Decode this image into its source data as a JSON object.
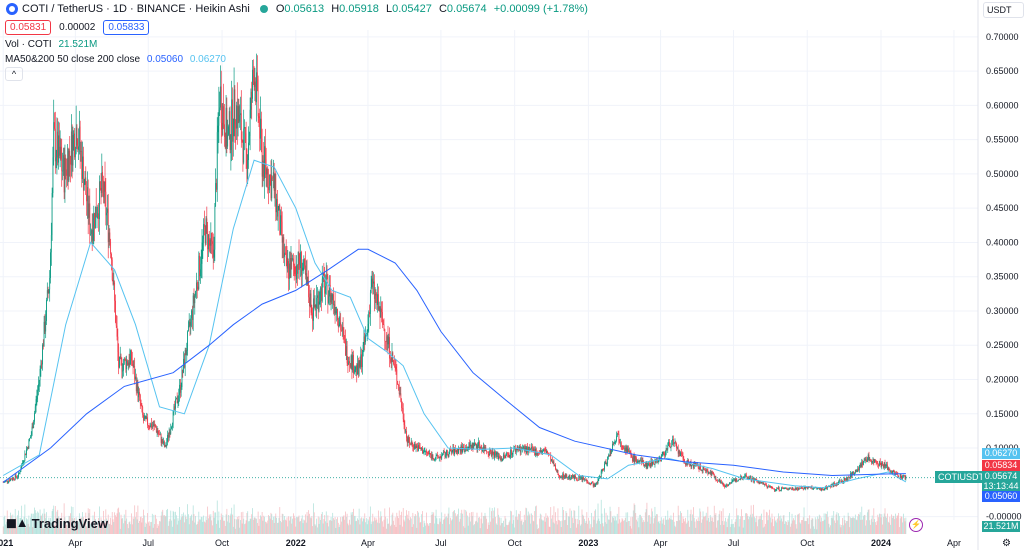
{
  "header": {
    "title": "COTI / TetherUS · 1D · BINANCE · Heikin Ashi",
    "o_key": "O",
    "o": "0.05613",
    "h_key": "H",
    "h": "0.05918",
    "l_key": "L",
    "l": "0.05427",
    "c_key": "C",
    "c": "0.05674",
    "change": "+0.00099 (+1.78%)",
    "sell": "0.05831",
    "spread": "0.00002",
    "buy": "0.05833",
    "currency": "USDT"
  },
  "indicators": {
    "vol_label": "Vol · COTI",
    "vol_value": "21.521M",
    "ma_label": "MA50&200 50 close 200 close",
    "ma50_value": "0.05060",
    "ma200_value": "0.06270"
  },
  "brand": {
    "logo_text": "TradingView"
  },
  "price_tags": {
    "ma200": "0.06270",
    "high_tag": "0.05834",
    "last": "0.05674",
    "countdown": "13:13:44",
    "ma50": "0.05060",
    "volume": "21.521M",
    "symbol": "COTIUSDT"
  },
  "colors": {
    "up": "#089981",
    "down": "#f23645",
    "ma_slow": "#2962ff",
    "ma_fast": "#56c3f0",
    "vol_up": "#b5e3dd",
    "vol_down": "#f6c0c4"
  },
  "chart_data": {
    "type": "candlestick",
    "title": "COTI / TetherUS · 1D · BINANCE · Heikin Ashi",
    "x_ticks": [
      "2021",
      "Apr",
      "Jul",
      "Oct",
      "2022",
      "Apr",
      "Jul",
      "Oct",
      "2023",
      "Apr",
      "Jul",
      "Oct",
      "2024",
      "Apr"
    ],
    "y_ticks": [
      "0.70000",
      "0.65000",
      "0.60000",
      "0.55000",
      "0.50000",
      "0.45000",
      "0.40000",
      "0.35000",
      "0.30000",
      "0.25000",
      "0.20000",
      "0.15000",
      "0.10000",
      "-0.00000"
    ],
    "ylim": [
      -0.005,
      0.71
    ],
    "grid": true,
    "price_path": [
      [
        "2021-01-01",
        0.05
      ],
      [
        "2021-01-20",
        0.06
      ],
      [
        "2021-02-05",
        0.12
      ],
      [
        "2021-02-15",
        0.2
      ],
      [
        "2021-02-28",
        0.35
      ],
      [
        "2021-03-05",
        0.55
      ],
      [
        "2021-03-18",
        0.5
      ],
      [
        "2021-04-03",
        0.57
      ],
      [
        "2021-04-20",
        0.42
      ],
      [
        "2021-05-05",
        0.48
      ],
      [
        "2021-05-15",
        0.4
      ],
      [
        "2021-05-25",
        0.22
      ],
      [
        "2021-06-10",
        0.23
      ],
      [
        "2021-06-25",
        0.14
      ],
      [
        "2021-07-10",
        0.13
      ],
      [
        "2021-07-22",
        0.1
      ],
      [
        "2021-08-10",
        0.19
      ],
      [
        "2021-08-25",
        0.3
      ],
      [
        "2021-09-10",
        0.42
      ],
      [
        "2021-09-20",
        0.38
      ],
      [
        "2021-09-28",
        0.62
      ],
      [
        "2021-10-08",
        0.55
      ],
      [
        "2021-10-18",
        0.6
      ],
      [
        "2021-11-01",
        0.52
      ],
      [
        "2021-11-10",
        0.66
      ],
      [
        "2021-11-20",
        0.52
      ],
      [
        "2021-12-05",
        0.48
      ],
      [
        "2021-12-20",
        0.36
      ],
      [
        "2022-01-08",
        0.37
      ],
      [
        "2022-01-22",
        0.3
      ],
      [
        "2022-02-05",
        0.34
      ],
      [
        "2022-02-20",
        0.31
      ],
      [
        "2022-03-05",
        0.24
      ],
      [
        "2022-03-20",
        0.21
      ],
      [
        "2022-03-31",
        0.27
      ],
      [
        "2022-04-05",
        0.34
      ],
      [
        "2022-04-20",
        0.28
      ],
      [
        "2022-05-08",
        0.2
      ],
      [
        "2022-05-20",
        0.11
      ],
      [
        "2022-06-10",
        0.095
      ],
      [
        "2022-06-25",
        0.085
      ],
      [
        "2022-07-15",
        0.095
      ],
      [
        "2022-08-15",
        0.105
      ],
      [
        "2022-09-15",
        0.085
      ],
      [
        "2022-10-05",
        0.1
      ],
      [
        "2022-10-25",
        0.095
      ],
      [
        "2022-11-10",
        0.095
      ],
      [
        "2022-11-25",
        0.06
      ],
      [
        "2022-12-25",
        0.055
      ],
      [
        "2023-01-10",
        0.045
      ],
      [
        "2023-01-25",
        0.085
      ],
      [
        "2023-02-05",
        0.12
      ],
      [
        "2023-02-25",
        0.085
      ],
      [
        "2023-03-15",
        0.075
      ],
      [
        "2023-04-01",
        0.085
      ],
      [
        "2023-04-15",
        0.11
      ],
      [
        "2023-05-01",
        0.08
      ],
      [
        "2023-06-01",
        0.065
      ],
      [
        "2023-06-20",
        0.045
      ],
      [
        "2023-07-15",
        0.06
      ],
      [
        "2023-08-20",
        0.04
      ],
      [
        "2023-10-01",
        0.042
      ],
      [
        "2023-10-20",
        0.04
      ],
      [
        "2023-11-20",
        0.055
      ],
      [
        "2023-12-15",
        0.085
      ],
      [
        "2024-01-05",
        0.075
      ],
      [
        "2024-01-20",
        0.06
      ],
      [
        "2024-02-01",
        0.057
      ]
    ],
    "series": [
      {
        "name": "MA 50",
        "value": "0.05060",
        "points": [
          [
            "2021-01-01",
            0.06
          ],
          [
            "2021-02-15",
            0.09
          ],
          [
            "2021-03-20",
            0.28
          ],
          [
            "2021-04-20",
            0.4
          ],
          [
            "2021-05-20",
            0.36
          ],
          [
            "2021-06-15",
            0.28
          ],
          [
            "2021-07-15",
            0.16
          ],
          [
            "2021-08-15",
            0.15
          ],
          [
            "2021-09-15",
            0.25
          ],
          [
            "2021-10-15",
            0.42
          ],
          [
            "2021-11-10",
            0.52
          ],
          [
            "2021-12-05",
            0.51
          ],
          [
            "2022-01-01",
            0.45
          ],
          [
            "2022-01-25",
            0.37
          ],
          [
            "2022-02-15",
            0.33
          ],
          [
            "2022-03-10",
            0.32
          ],
          [
            "2022-04-01",
            0.26
          ],
          [
            "2022-04-25",
            0.24
          ],
          [
            "2022-05-15",
            0.22
          ],
          [
            "2022-06-10",
            0.15
          ],
          [
            "2022-07-10",
            0.1
          ],
          [
            "2022-08-20",
            0.098
          ],
          [
            "2022-10-01",
            0.1
          ],
          [
            "2022-11-15",
            0.09
          ],
          [
            "2022-12-20",
            0.06
          ],
          [
            "2023-01-25",
            0.055
          ],
          [
            "2023-02-20",
            0.075
          ],
          [
            "2023-04-10",
            0.085
          ],
          [
            "2023-06-05",
            0.07
          ],
          [
            "2023-07-15",
            0.055
          ],
          [
            "2023-09-15",
            0.045
          ],
          [
            "2023-10-20",
            0.042
          ],
          [
            "2023-12-01",
            0.055
          ],
          [
            "2024-01-10",
            0.065
          ],
          [
            "2024-02-01",
            0.0506
          ]
        ]
      },
      {
        "name": "MA 200",
        "value": "0.06270",
        "points": [
          [
            "2021-01-01",
            0.05
          ],
          [
            "2021-03-01",
            0.1
          ],
          [
            "2021-04-15",
            0.15
          ],
          [
            "2021-06-01",
            0.19
          ],
          [
            "2021-08-01",
            0.21
          ],
          [
            "2021-09-15",
            0.25
          ],
          [
            "2021-10-15",
            0.28
          ],
          [
            "2021-11-20",
            0.31
          ],
          [
            "2022-01-01",
            0.33
          ],
          [
            "2022-02-10",
            0.36
          ],
          [
            "2022-03-20",
            0.39
          ],
          [
            "2022-04-01",
            0.39
          ],
          [
            "2022-05-05",
            0.37
          ],
          [
            "2022-06-01",
            0.33
          ],
          [
            "2022-07-01",
            0.27
          ],
          [
            "2022-08-10",
            0.21
          ],
          [
            "2022-09-20",
            0.17
          ],
          [
            "2022-11-01",
            0.13
          ],
          [
            "2022-12-15",
            0.11
          ],
          [
            "2023-03-01",
            0.09
          ],
          [
            "2023-05-01",
            0.08
          ],
          [
            "2023-07-01",
            0.075
          ],
          [
            "2023-09-01",
            0.065
          ],
          [
            "2023-11-01",
            0.06
          ],
          [
            "2024-01-01",
            0.062
          ],
          [
            "2024-02-01",
            0.0627
          ]
        ]
      }
    ]
  }
}
